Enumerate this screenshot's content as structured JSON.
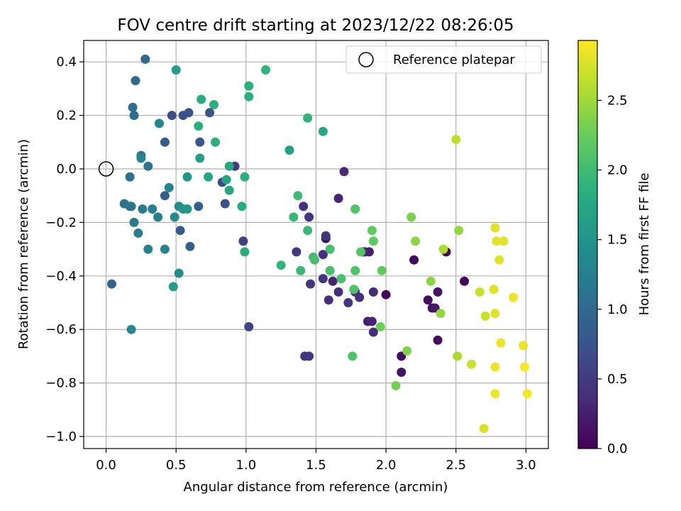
{
  "chart_data": {
    "type": "scatter",
    "title": "FOV centre drift starting at 2023/12/22 08:26:05",
    "xlabel": "Angular distance from reference (arcmin)",
    "ylabel": "Rotation from reference (arcmin)",
    "xlim": [
      -0.16,
      3.16
    ],
    "ylim": [
      -1.045,
      0.48
    ],
    "xticks": [
      0.0,
      0.5,
      1.0,
      1.5,
      2.0,
      2.5,
      3.0
    ],
    "xtick_labels": [
      "0.0",
      "0.5",
      "1.0",
      "1.5",
      "2.0",
      "2.5",
      "3.0"
    ],
    "yticks": [
      0.4,
      0.2,
      0.0,
      -0.2,
      -0.4,
      -0.6,
      -0.8,
      -1.0
    ],
    "ytick_labels": [
      "0.4",
      "0.2",
      "0.0",
      "−0.2",
      "−0.4",
      "−0.6",
      "−0.8",
      "−1.0"
    ],
    "grid": true,
    "legend": {
      "placement": "top-right",
      "entries": [
        "Reference platepar"
      ]
    },
    "reference_point": {
      "x": 0.0,
      "y": 0.0
    },
    "colorbar": {
      "label": "Hours from first FF file",
      "colormap": "viridis",
      "range": [
        0.0,
        2.93
      ],
      "ticks": [
        0.0,
        0.5,
        1.0,
        1.5,
        2.0,
        2.5
      ],
      "tick_labels": [
        "0.0",
        "0.5",
        "1.0",
        "1.5",
        "2.0",
        "2.5"
      ]
    },
    "series": [
      {
        "x": 2.0,
        "y": -0.47,
        "t": 0.03
      },
      {
        "x": 1.57,
        "y": -0.26,
        "t": 0.15
      },
      {
        "x": 1.85,
        "y": -0.31,
        "t": 0.2
      },
      {
        "x": 1.88,
        "y": -0.31,
        "t": 0.25
      },
      {
        "x": 1.62,
        "y": -0.42,
        "t": 0.3
      },
      {
        "x": 2.2,
        "y": -0.34,
        "t": 0.05
      },
      {
        "x": 2.43,
        "y": -0.31,
        "t": 0.05
      },
      {
        "x": 2.56,
        "y": -0.42,
        "t": 0.05
      },
      {
        "x": 2.37,
        "y": -0.64,
        "t": 0.08
      },
      {
        "x": 2.11,
        "y": -0.7,
        "t": 0.1
      },
      {
        "x": 2.11,
        "y": -0.76,
        "t": 0.15
      },
      {
        "x": 2.3,
        "y": -0.49,
        "t": 0.1
      },
      {
        "x": 2.33,
        "y": -0.52,
        "t": 0.12
      },
      {
        "x": 2.37,
        "y": -0.46,
        "t": 0.15
      },
      {
        "x": 2.35,
        "y": -0.52,
        "t": 0.2
      },
      {
        "x": 1.87,
        "y": -0.57,
        "t": 0.25
      },
      {
        "x": 1.9,
        "y": -0.57,
        "t": 0.3
      },
      {
        "x": 1.91,
        "y": -0.61,
        "t": 0.35
      },
      {
        "x": 1.91,
        "y": -0.46,
        "t": 0.35
      },
      {
        "x": 1.78,
        "y": -0.46,
        "t": 0.38
      },
      {
        "x": 1.81,
        "y": -0.48,
        "t": 0.4
      },
      {
        "x": 1.73,
        "y": -0.5,
        "t": 0.45
      },
      {
        "x": 1.66,
        "y": -0.46,
        "t": 0.4
      },
      {
        "x": 1.66,
        "y": -0.11,
        "t": 0.3
      },
      {
        "x": 1.7,
        "y": -0.01,
        "t": 0.35
      },
      {
        "x": 1.55,
        "y": -0.32,
        "t": 0.4
      },
      {
        "x": 1.57,
        "y": -0.25,
        "t": 0.45
      },
      {
        "x": 1.59,
        "y": -0.49,
        "t": 0.4
      },
      {
        "x": 1.55,
        "y": -0.41,
        "t": 0.45
      },
      {
        "x": 1.45,
        "y": -0.18,
        "t": 0.45
      },
      {
        "x": 1.41,
        "y": -0.14,
        "t": 0.4
      },
      {
        "x": 1.36,
        "y": -0.31,
        "t": 0.45
      },
      {
        "x": 1.46,
        "y": -0.43,
        "t": 0.45
      },
      {
        "x": 1.42,
        "y": -0.7,
        "t": 0.45
      },
      {
        "x": 1.45,
        "y": -0.7,
        "t": 0.45
      },
      {
        "x": 1.84,
        "y": -0.31,
        "t": 0.35
      },
      {
        "x": 0.92,
        "y": 0.01,
        "t": 0.5
      },
      {
        "x": 0.98,
        "y": -0.27,
        "t": 0.55
      },
      {
        "x": 1.02,
        "y": -0.59,
        "t": 0.6
      },
      {
        "x": 0.83,
        "y": -0.05,
        "t": 0.65
      },
      {
        "x": 0.85,
        "y": -0.13,
        "t": 0.7
      },
      {
        "x": 0.47,
        "y": 0.2,
        "t": 0.7
      },
      {
        "x": 0.55,
        "y": 0.2,
        "t": 0.7
      },
      {
        "x": 0.59,
        "y": 0.21,
        "t": 0.75
      },
      {
        "x": 0.74,
        "y": 0.21,
        "t": 0.75
      },
      {
        "x": 0.67,
        "y": 0.1,
        "t": 0.8
      },
      {
        "x": 0.42,
        "y": 0.1,
        "t": 0.85
      },
      {
        "x": 0.42,
        "y": -0.1,
        "t": 0.85
      },
      {
        "x": 0.53,
        "y": -0.23,
        "t": 0.85
      },
      {
        "x": 0.6,
        "y": -0.29,
        "t": 0.9
      },
      {
        "x": 0.66,
        "y": -0.14,
        "t": 0.9
      },
      {
        "x": 0.04,
        "y": -0.43,
        "t": 0.95
      },
      {
        "x": 0.28,
        "y": 0.41,
        "t": 1.0
      },
      {
        "x": 0.21,
        "y": 0.33,
        "t": 1.0
      },
      {
        "x": 0.19,
        "y": 0.23,
        "t": 1.05
      },
      {
        "x": 0.2,
        "y": 0.2,
        "t": 1.05
      },
      {
        "x": 0.25,
        "y": 0.05,
        "t": 1.1
      },
      {
        "x": 0.3,
        "y": 0.01,
        "t": 1.1
      },
      {
        "x": 0.17,
        "y": -0.03,
        "t": 1.1
      },
      {
        "x": 0.13,
        "y": -0.13,
        "t": 1.1
      },
      {
        "x": 0.17,
        "y": -0.14,
        "t": 1.15
      },
      {
        "x": 0.18,
        "y": -0.14,
        "t": 1.15
      },
      {
        "x": 0.2,
        "y": -0.2,
        "t": 1.2
      },
      {
        "x": 0.23,
        "y": -0.24,
        "t": 1.2
      },
      {
        "x": 0.26,
        "y": -0.15,
        "t": 1.2
      },
      {
        "x": 0.33,
        "y": -0.15,
        "t": 1.25
      },
      {
        "x": 0.37,
        "y": -0.18,
        "t": 1.25
      },
      {
        "x": 0.3,
        "y": -0.3,
        "t": 1.3
      },
      {
        "x": 0.42,
        "y": -0.3,
        "t": 1.3
      },
      {
        "x": 0.45,
        "y": -0.07,
        "t": 1.3
      },
      {
        "x": 0.18,
        "y": -0.6,
        "t": 1.35
      },
      {
        "x": 0.25,
        "y": 0.04,
        "t": 1.3
      },
      {
        "x": 0.38,
        "y": 0.17,
        "t": 1.35
      },
      {
        "x": 0.52,
        "y": -0.14,
        "t": 1.4
      },
      {
        "x": 0.49,
        "y": -0.18,
        "t": 1.4
      },
      {
        "x": 0.52,
        "y": -0.39,
        "t": 1.4
      },
      {
        "x": 0.55,
        "y": -0.15,
        "t": 1.5
      },
      {
        "x": 0.58,
        "y": -0.15,
        "t": 1.55
      },
      {
        "x": 0.58,
        "y": -0.03,
        "t": 1.55
      },
      {
        "x": 0.5,
        "y": 0.37,
        "t": 1.6
      },
      {
        "x": 0.48,
        "y": -0.44,
        "t": 1.6
      },
      {
        "x": 0.67,
        "y": 0.04,
        "t": 1.65
      },
      {
        "x": 0.73,
        "y": -0.03,
        "t": 1.7
      },
      {
        "x": 0.86,
        "y": -0.04,
        "t": 1.7
      },
      {
        "x": 0.88,
        "y": -0.08,
        "t": 1.75
      },
      {
        "x": 0.88,
        "y": 0.01,
        "t": 1.75
      },
      {
        "x": 0.97,
        "y": -0.14,
        "t": 1.8
      },
      {
        "x": 0.99,
        "y": -0.31,
        "t": 1.8
      },
      {
        "x": 0.99,
        "y": -0.03,
        "t": 1.85
      },
      {
        "x": 0.66,
        "y": 0.16,
        "t": 1.85
      },
      {
        "x": 0.68,
        "y": 0.26,
        "t": 1.8
      },
      {
        "x": 0.77,
        "y": 0.24,
        "t": 1.85
      },
      {
        "x": 0.78,
        "y": 0.1,
        "t": 1.85
      },
      {
        "x": 1.02,
        "y": 0.31,
        "t": 1.85
      },
      {
        "x": 1.02,
        "y": 0.27,
        "t": 1.85
      },
      {
        "x": 1.14,
        "y": 0.37,
        "t": 1.9
      },
      {
        "x": 1.31,
        "y": 0.07,
        "t": 1.65
      },
      {
        "x": 1.55,
        "y": 0.14,
        "t": 1.75
      },
      {
        "x": 1.44,
        "y": 0.19,
        "t": 1.9
      },
      {
        "x": 1.25,
        "y": -0.36,
        "t": 1.9
      },
      {
        "x": 1.34,
        "y": -0.18,
        "t": 1.95
      },
      {
        "x": 1.39,
        "y": -0.38,
        "t": 1.95
      },
      {
        "x": 1.44,
        "y": -0.23,
        "t": 1.95
      },
      {
        "x": 1.37,
        "y": -0.1,
        "t": 2.0
      },
      {
        "x": 1.48,
        "y": -0.33,
        "t": 2.0
      },
      {
        "x": 1.49,
        "y": -0.34,
        "t": 2.05
      },
      {
        "x": 1.6,
        "y": -0.3,
        "t": 2.05
      },
      {
        "x": 1.6,
        "y": -0.38,
        "t": 2.05
      },
      {
        "x": 1.68,
        "y": -0.41,
        "t": 2.05
      },
      {
        "x": 1.77,
        "y": -0.45,
        "t": 2.1
      },
      {
        "x": 1.78,
        "y": -0.38,
        "t": 2.1
      },
      {
        "x": 1.78,
        "y": -0.15,
        "t": 2.1
      },
      {
        "x": 1.82,
        "y": -0.31,
        "t": 2.15
      },
      {
        "x": 1.9,
        "y": -0.23,
        "t": 2.2
      },
      {
        "x": 1.91,
        "y": -0.27,
        "t": 2.2
      },
      {
        "x": 1.97,
        "y": -0.38,
        "t": 2.2
      },
      {
        "x": 1.96,
        "y": -0.59,
        "t": 2.25
      },
      {
        "x": 1.76,
        "y": -0.7,
        "t": 2.1
      },
      {
        "x": 2.07,
        "y": -0.81,
        "t": 2.3
      },
      {
        "x": 2.15,
        "y": -0.68,
        "t": 2.35
      },
      {
        "x": 2.18,
        "y": -0.18,
        "t": 2.35
      },
      {
        "x": 2.21,
        "y": -0.27,
        "t": 2.4
      },
      {
        "x": 2.32,
        "y": -0.42,
        "t": 2.4
      },
      {
        "x": 2.39,
        "y": -0.54,
        "t": 2.45
      },
      {
        "x": 2.41,
        "y": -0.3,
        "t": 2.55
      },
      {
        "x": 2.52,
        "y": -0.23,
        "t": 2.45
      },
      {
        "x": 2.51,
        "y": -0.7,
        "t": 2.55
      },
      {
        "x": 2.5,
        "y": 0.11,
        "t": 2.65
      },
      {
        "x": 2.61,
        "y": -0.73,
        "t": 2.7
      },
      {
        "x": 2.67,
        "y": -0.46,
        "t": 2.7
      },
      {
        "x": 2.71,
        "y": -0.55,
        "t": 2.7
      },
      {
        "x": 2.7,
        "y": -0.97,
        "t": 2.75
      },
      {
        "x": 2.77,
        "y": -0.45,
        "t": 2.8
      },
      {
        "x": 2.78,
        "y": -0.54,
        "t": 2.8
      },
      {
        "x": 2.78,
        "y": -0.22,
        "t": 2.8
      },
      {
        "x": 2.79,
        "y": -0.27,
        "t": 2.8
      },
      {
        "x": 2.81,
        "y": -0.34,
        "t": 2.8
      },
      {
        "x": 2.84,
        "y": -0.27,
        "t": 2.8
      },
      {
        "x": 2.82,
        "y": -0.65,
        "t": 2.85
      },
      {
        "x": 2.78,
        "y": -0.74,
        "t": 2.85
      },
      {
        "x": 2.78,
        "y": -0.84,
        "t": 2.85
      },
      {
        "x": 2.91,
        "y": -0.48,
        "t": 2.85
      },
      {
        "x": 2.98,
        "y": -0.66,
        "t": 2.85
      },
      {
        "x": 2.99,
        "y": -0.74,
        "t": 2.9
      },
      {
        "x": 3.01,
        "y": -0.84,
        "t": 2.9
      }
    ]
  }
}
